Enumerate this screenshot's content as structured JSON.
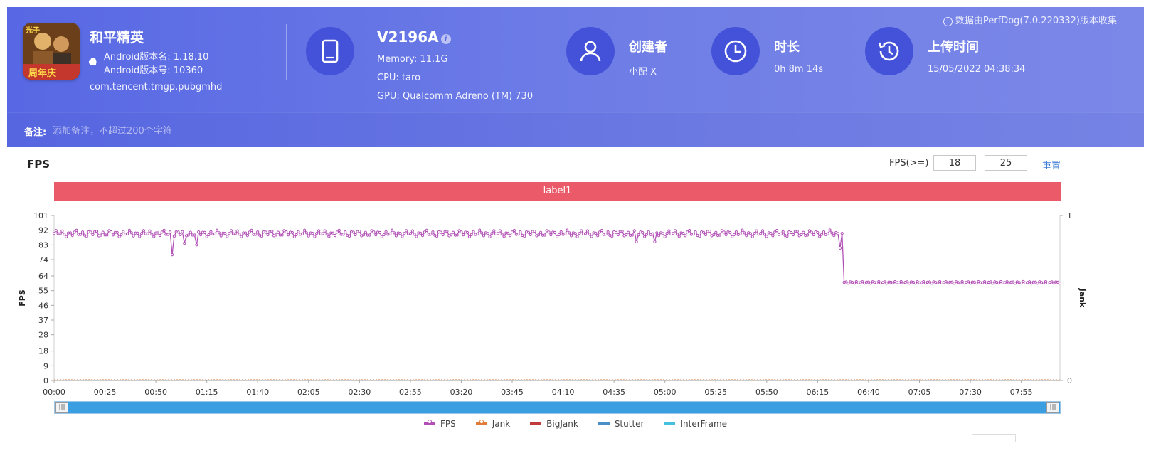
{
  "header": {
    "collect_note": "数据由PerfDog(7.0.220332)版本收集",
    "app": {
      "name": "和平精英",
      "version_name": "Android版本名: 1.18.10",
      "version_code": "Android版本号: 10360",
      "package": "com.tencent.tmgp.pubgmhd",
      "icon": "game-app-icon"
    },
    "device": {
      "name": "V2196A",
      "memory": "Memory: 11.1G",
      "cpu": "CPU: taro",
      "gpu": "GPU: Qualcomm Adreno (TM) 730",
      "icon": "tablet-icon"
    },
    "creator": {
      "title": "创建者",
      "value": "小配 X",
      "icon": "user-icon"
    },
    "duration": {
      "title": "时长",
      "value": "0h 8m 14s",
      "icon": "clock-icon"
    },
    "upload": {
      "title": "上传时间",
      "value": "15/05/2022 04:38:34",
      "icon": "history-icon"
    }
  },
  "notes": {
    "label": "备注:",
    "placeholder": "添加备注，不超过200个字符"
  },
  "panel": {
    "title": "FPS",
    "threshold_label": "FPS(>=)",
    "threshold_1": "18",
    "threshold_2": "25",
    "reset_label": "重置",
    "label_band": "label1"
  },
  "colors": {
    "fps": "#b14fb6",
    "jank": "#e07b39",
    "bigjank": "#c0393b",
    "stutter": "#4a8fc7",
    "interframe": "#46c0de",
    "band": "#eb5a68",
    "scroll": "#3a9ee0"
  },
  "chart_data": {
    "type": "line",
    "ylabel": "FPS",
    "y2label": "Jank",
    "yticks": [
      0,
      9,
      18,
      28,
      37,
      46,
      55,
      64,
      74,
      83,
      92,
      101
    ],
    "ylim": [
      0,
      101
    ],
    "y2ticks": [
      0,
      1
    ],
    "y2lim": [
      0,
      1
    ],
    "xticks": [
      "00:00",
      "00:25",
      "00:50",
      "01:15",
      "01:40",
      "02:05",
      "02:30",
      "02:55",
      "03:20",
      "03:45",
      "04:10",
      "04:35",
      "05:00",
      "05:25",
      "05:50",
      "06:15",
      "06:40",
      "07:05",
      "07:30",
      "07:55"
    ],
    "xlim_seconds": [
      0,
      494
    ],
    "fps_profile": {
      "high_level": 90,
      "low_level": 60,
      "drop_time_seconds": 388,
      "dips": [
        {
          "t": 58,
          "fps": 77
        },
        {
          "t": 64,
          "fps": 84
        },
        {
          "t": 70,
          "fps": 83
        },
        {
          "t": 286,
          "fps": 85
        },
        {
          "t": 295,
          "fps": 85
        },
        {
          "t": 386,
          "fps": 81
        }
      ]
    },
    "series": [
      {
        "name": "FPS"
      },
      {
        "name": "Jank"
      },
      {
        "name": "BigJank"
      },
      {
        "name": "Stutter"
      },
      {
        "name": "InterFrame"
      }
    ],
    "legend_position": "bottom",
    "grid": false
  }
}
